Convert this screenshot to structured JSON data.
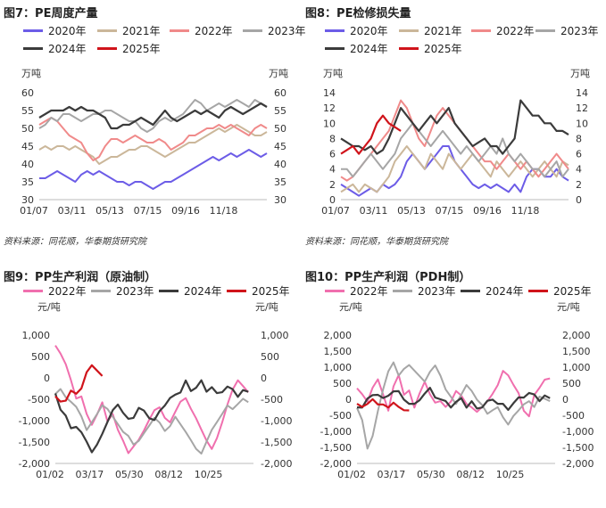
{
  "source_note_left": "资料来源：同花顺，华泰期货研究院",
  "source_note_right": "资料来源：同花顺，华泰期货研究院",
  "colors": {
    "2020年": "#6c5ce7",
    "2021年": "#cbb79a",
    "2022年": "#f08a8a",
    "2023年": "#a6a6a6",
    "2024年": "#3b3b3b",
    "2025年": "#d0141b",
    "2022年pp": "#f06fae"
  },
  "chart_data": [
    {
      "type": "line",
      "title": "图7：PE周度产量",
      "ylabel_left": "万吨",
      "ylabel_right": "万吨",
      "ylim": [
        30,
        60
      ],
      "yticks": [
        "30",
        "35",
        "40",
        "45",
        "50",
        "55",
        "60"
      ],
      "x_ticks": [
        "01/07",
        "03/11",
        "05/13",
        "07/15",
        "09/16",
        "11/18"
      ],
      "grid": false,
      "series": [
        {
          "name": "2020年",
          "values": [
            36,
            36,
            37,
            38,
            37,
            36,
            35,
            37,
            38,
            37,
            38,
            37,
            36,
            35,
            35,
            34,
            35,
            35,
            34,
            33,
            34,
            35,
            35,
            36,
            37,
            38,
            39,
            40,
            41,
            42,
            41,
            42,
            43,
            42,
            43,
            44,
            43,
            42,
            43
          ]
        },
        {
          "name": "2021年",
          "values": [
            44,
            45,
            44,
            45,
            45,
            44,
            45,
            44,
            43,
            42,
            40,
            41,
            42,
            42,
            43,
            44,
            44,
            45,
            45,
            44,
            43,
            42,
            43,
            44,
            45,
            46,
            46,
            47,
            48,
            49,
            50,
            49,
            50,
            51,
            50,
            49,
            48,
            48,
            49
          ]
        },
        {
          "name": "2022年",
          "values": [
            51,
            52,
            53,
            52,
            50,
            48,
            47,
            46,
            43,
            41,
            42,
            45,
            47,
            47,
            46,
            47,
            48,
            47,
            46,
            46,
            47,
            46,
            44,
            45,
            46,
            48,
            48,
            49,
            50,
            50,
            51,
            50,
            51,
            50,
            49,
            48,
            50,
            51,
            50
          ]
        },
        {
          "name": "2023年",
          "values": [
            50,
            51,
            53,
            52,
            54,
            54,
            53,
            52,
            53,
            54,
            54,
            55,
            55,
            54,
            53,
            52,
            52,
            50,
            49,
            50,
            52,
            53,
            52,
            53,
            54,
            56,
            58,
            57,
            55,
            56,
            57,
            56,
            57,
            58,
            57,
            56,
            58,
            57,
            56
          ]
        },
        {
          "name": "2024年",
          "values": [
            53,
            54,
            55,
            55,
            55,
            56,
            55,
            56,
            55,
            55,
            54,
            53,
            50,
            50,
            51,
            51,
            52,
            53,
            52,
            51,
            53,
            55,
            53,
            52,
            53,
            54,
            55,
            54,
            55,
            54,
            53,
            55,
            56,
            55,
            54,
            55,
            56,
            57,
            56
          ]
        },
        {
          "name": "2025年",
          "values": []
        }
      ]
    },
    {
      "type": "line",
      "title": "图8：PE检修损失量",
      "ylabel_left": "万吨",
      "ylabel_right": "万吨",
      "ylim": [
        0,
        14
      ],
      "yticks": [
        "0",
        "2",
        "4",
        "6",
        "8",
        "10",
        "12",
        "14"
      ],
      "x_ticks": [
        "01/07",
        "03/11",
        "05/13",
        "07/15",
        "09/16",
        "11/18"
      ],
      "grid": false,
      "series": [
        {
          "name": "2020年",
          "values": [
            2,
            1.5,
            1,
            0.5,
            1,
            1.5,
            1,
            2,
            1.5,
            2,
            3,
            5,
            6,
            5,
            4,
            5,
            6,
            7,
            7,
            5,
            4,
            3,
            2,
            1.5,
            2,
            1.5,
            2,
            1.5,
            1,
            2,
            1,
            3,
            4,
            4,
            3,
            3,
            4,
            3,
            2.5
          ]
        },
        {
          "name": "2021年",
          "values": [
            1,
            1.5,
            2,
            1,
            2,
            1.5,
            1,
            2,
            3,
            5,
            6,
            7,
            6,
            5,
            4,
            6,
            5,
            4,
            6,
            5,
            4,
            5,
            6,
            5,
            4,
            3,
            5,
            4,
            3,
            4,
            5,
            4,
            3,
            4,
            5,
            4,
            3,
            5,
            4.5
          ]
        },
        {
          "name": "2022年",
          "values": [
            3,
            2.5,
            3,
            4,
            5,
            6,
            7,
            8,
            9,
            11,
            13,
            12,
            10,
            8,
            7,
            9,
            11,
            12,
            11,
            10,
            9,
            8,
            7,
            6,
            5,
            5,
            4,
            5,
            6,
            5,
            4,
            5,
            4,
            3,
            4,
            5,
            6,
            5,
            4
          ]
        },
        {
          "name": "2023年",
          "values": [
            4,
            4,
            3,
            4,
            5,
            6,
            5,
            4,
            5,
            6,
            8,
            9,
            10,
            9,
            8,
            7,
            8,
            9,
            8,
            7,
            6,
            7,
            6,
            5,
            6,
            7,
            6,
            8,
            6,
            5,
            6,
            5,
            4,
            4,
            3,
            4,
            5,
            3,
            4
          ]
        },
        {
          "name": "2024年",
          "values": [
            8,
            7.5,
            7,
            7,
            6.5,
            7,
            6,
            6.5,
            8,
            10,
            12,
            11,
            10,
            9,
            10,
            11,
            10,
            11,
            12,
            10,
            9,
            8,
            7,
            7.5,
            8,
            7,
            7,
            6,
            7,
            8,
            13,
            12,
            11,
            11,
            10,
            10,
            9,
            9,
            8.5
          ]
        },
        {
          "name": "2025年",
          "values": [
            6,
            6.5,
            7,
            6,
            7,
            8,
            10,
            11,
            10,
            9.5,
            9
          ]
        }
      ]
    },
    {
      "type": "line",
      "title": "图9：PP生产利润（原油制）",
      "ylabel_left": "元/吨",
      "ylabel_right": "元/吨",
      "ylim": [
        -2000,
        1000
      ],
      "yticks": [
        "-2,000",
        "-1,500",
        "-1,000",
        "-500",
        "0",
        "500",
        "1,000"
      ],
      "x_ticks": [
        "01/02",
        "03/17",
        "05/30",
        "08/12",
        "10/25"
      ],
      "grid": false,
      "series": [
        {
          "name": "2022年",
          "values": [
            800,
            600,
            300,
            -100,
            -500,
            -400,
            -800,
            -1100,
            -900,
            -600,
            -1000,
            -800,
            -1200,
            -1500,
            -1800,
            -1600,
            -1400,
            -1200,
            -1000,
            -800,
            -700,
            -900,
            -1000,
            -800,
            -600,
            -500,
            -700,
            -900,
            -1200,
            -1500,
            -1700,
            -1400,
            -1000,
            -600,
            -300,
            -100,
            -200,
            -300
          ]
        },
        {
          "name": "2023年",
          "values": [
            -400,
            -300,
            -500,
            -600,
            -700,
            -900,
            -1200,
            -1000,
            -800,
            -600,
            -700,
            -900,
            -1100,
            -1300,
            -1400,
            -1600,
            -1500,
            -1300,
            -1100,
            -900,
            -1000,
            -1200,
            -1100,
            -900,
            -1100,
            -1300,
            -1500,
            -1700,
            -1800,
            -1500,
            -1200,
            -1000,
            -800,
            -600,
            -700,
            -600,
            -500,
            -600
          ]
        },
        {
          "name": "2024年",
          "values": [
            -400,
            -700,
            -900,
            -1200,
            -1100,
            -1300,
            -1500,
            -1700,
            -1600,
            -1300,
            -1000,
            -800,
            -600,
            -800,
            -1000,
            -900,
            -700,
            -800,
            -900,
            -1000,
            -800,
            -600,
            -500,
            -400,
            -300,
            -100,
            -300,
            -200,
            -100,
            -300,
            -200,
            -400,
            -300,
            -200,
            -300,
            -400,
            -300,
            -350
          ]
        },
        {
          "name": "2025年",
          "values": [
            -400,
            -600,
            -500,
            -300,
            -400,
            -200,
            100,
            300,
            200,
            0
          ]
        }
      ]
    },
    {
      "type": "line",
      "title": "图10：PP生产利润（PDH制）",
      "ylabel_left": "元/吨",
      "ylabel_right": "元/吨",
      "ylim": [
        -2000,
        2000
      ],
      "yticks": [
        "-2,000",
        "-1,500",
        "-1,000",
        "-500",
        "0",
        "500",
        "1,000",
        "1,500",
        "2,000"
      ],
      "x_ticks": [
        "01/02",
        "03/17",
        "05/30",
        "08/12",
        "10/25"
      ],
      "grid": false,
      "series": [
        {
          "name": "2022年",
          "values": [
            400,
            200,
            -100,
            300,
            600,
            200,
            -300,
            400,
            700,
            100,
            300,
            -200,
            200,
            500,
            100,
            -100,
            0,
            -200,
            -100,
            200,
            100,
            -100,
            -200,
            -400,
            -300,
            -100,
            200,
            500,
            900,
            700,
            400,
            200,
            -300,
            -500,
            100,
            300,
            600,
            700
          ]
        },
        {
          "name": "2023年",
          "values": [
            -300,
            -700,
            -1600,
            -1200,
            -400,
            300,
            900,
            1200,
            800,
            1000,
            1100,
            900,
            700,
            500,
            800,
            1000,
            700,
            300,
            100,
            -100,
            200,
            500,
            300,
            0,
            -200,
            -500,
            -400,
            -300,
            -600,
            -800,
            -500,
            -300,
            -100,
            0,
            -200,
            100,
            0,
            -100
          ]
        },
        {
          "name": "2024年",
          "values": [
            -300,
            -200,
            0,
            100,
            200,
            0,
            100,
            300,
            200,
            0,
            -100,
            -200,
            0,
            200,
            300,
            100,
            0,
            -100,
            -200,
            -100,
            0,
            -200,
            -100,
            -300,
            -200,
            -100,
            0,
            -100,
            -200,
            -300,
            -100,
            0,
            100,
            200,
            100,
            0,
            100,
            0
          ]
        },
        {
          "name": "2025年",
          "values": [
            -100,
            -300,
            -100,
            0,
            -200,
            -100,
            -300,
            -100,
            -200,
            -400,
            -300
          ]
        }
      ]
    }
  ]
}
